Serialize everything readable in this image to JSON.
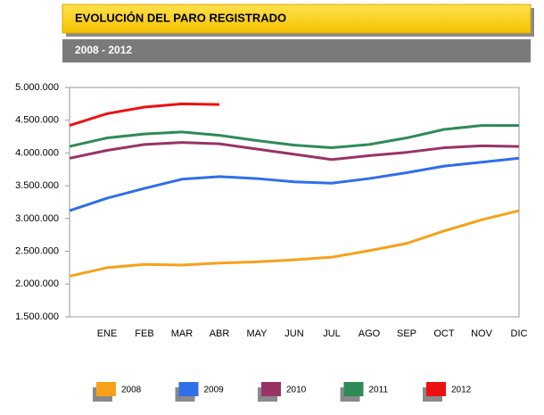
{
  "chart_data": {
    "type": "line",
    "title": "EVOLUCIÓN DEL PARO REGISTRADO",
    "subtitle": "2008 - 2012",
    "categories": [
      null,
      "ENE",
      "FEB",
      "MAR",
      "ABR",
      "MAY",
      "JUN",
      "JUL",
      "AGO",
      "SEP",
      "OCT",
      "NOV",
      "DIC"
    ],
    "series": [
      {
        "name": "2008",
        "color": "#f7a11a",
        "values": [
          2120000,
          2250000,
          2300000,
          2290000,
          2320000,
          2340000,
          2370000,
          2410000,
          2510000,
          2620000,
          2810000,
          2980000,
          3120000
        ]
      },
      {
        "name": "2009",
        "color": "#2f6fe8",
        "values": [
          3120000,
          3310000,
          3460000,
          3600000,
          3640000,
          3610000,
          3560000,
          3540000,
          3610000,
          3700000,
          3800000,
          3860000,
          3920000
        ]
      },
      {
        "name": "2010",
        "color": "#993366",
        "values": [
          3920000,
          4040000,
          4130000,
          4160000,
          4140000,
          4060000,
          3980000,
          3900000,
          3960000,
          4010000,
          4080000,
          4110000,
          4100000
        ]
      },
      {
        "name": "2011",
        "color": "#2e8b57",
        "values": [
          4100000,
          4230000,
          4290000,
          4320000,
          4270000,
          4190000,
          4120000,
          4080000,
          4130000,
          4230000,
          4360000,
          4420000,
          4420000
        ]
      },
      {
        "name": "2012",
        "color": "#ee1111",
        "values": [
          4420000,
          4600000,
          4700000,
          4750000,
          4740000,
          null,
          null,
          null,
          null,
          null,
          null,
          null,
          null
        ]
      }
    ],
    "ylim": [
      1500000,
      5000000
    ],
    "yticks": [
      {
        "value": 1500000,
        "label": "1.500.000"
      },
      {
        "value": 2000000,
        "label": "2.000.000"
      },
      {
        "value": 2500000,
        "label": "2.500.000"
      },
      {
        "value": 3000000,
        "label": "3.000.000"
      },
      {
        "value": 3500000,
        "label": "3.500.000"
      },
      {
        "value": 4000000,
        "label": "4.000.000"
      },
      {
        "value": 4500000,
        "label": "4.500.000"
      },
      {
        "value": 5000000,
        "label": "5.000.000"
      }
    ],
    "grid": false
  }
}
